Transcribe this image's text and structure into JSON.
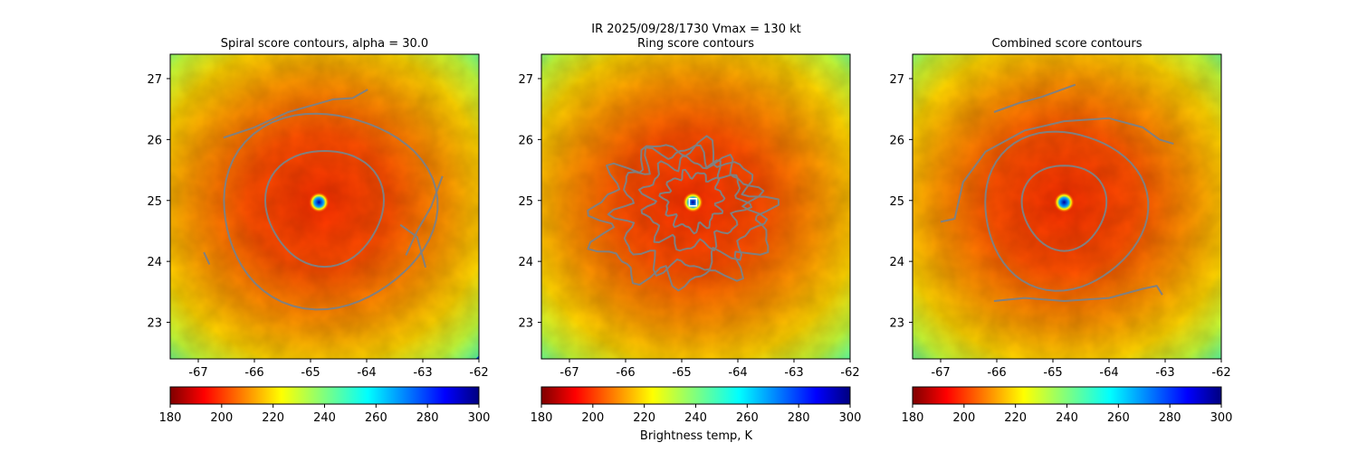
{
  "figure": {
    "suptitle": "IR  2025/09/28/1730    Vmax = 130 kt",
    "colorbar_label": "Brightness temp, K"
  },
  "chart_data": [
    {
      "type": "heatmap",
      "title": "Spiral score contours, alpha = 30.0",
      "xlim": [
        -67.5,
        -62.0
      ],
      "ylim": [
        22.4,
        27.4
      ],
      "xticks": [
        "-67",
        "-66",
        "-65",
        "-64",
        "-63",
        "-62"
      ],
      "xtick_values": [
        -67,
        -66,
        -65,
        -64,
        -63,
        -62
      ],
      "yticks": [
        "23",
        "24",
        "25",
        "26",
        "27"
      ],
      "ytick_values": [
        23,
        24,
        25,
        26,
        27
      ],
      "center": [
        -64.85,
        24.97
      ],
      "contours": [
        {
          "type": "ring",
          "rx": 1.05,
          "ry": 0.95,
          "cx": -64.75,
          "cy": 24.9
        },
        {
          "type": "ring",
          "rx": 1.9,
          "ry": 1.6,
          "cx": -64.7,
          "cy": 24.85
        },
        {
          "type": "path",
          "points": [
            [
              -66.55,
              26.03
            ],
            [
              -66.0,
              26.2
            ],
            [
              -65.4,
              26.45
            ],
            [
              -64.9,
              26.58
            ],
            [
              -64.6,
              26.66
            ],
            [
              -64.25,
              26.68
            ],
            [
              -63.98,
              26.82
            ]
          ]
        },
        {
          "type": "path",
          "points": [
            [
              -63.3,
              24.1
            ],
            [
              -63.1,
              24.5
            ],
            [
              -62.85,
              24.9
            ],
            [
              -62.65,
              25.4
            ]
          ]
        },
        {
          "type": "path",
          "points": [
            [
              -63.4,
              24.6
            ],
            [
              -63.1,
              24.4
            ],
            [
              -62.95,
              23.9
            ]
          ]
        },
        {
          "type": "path",
          "points": [
            [
              -66.9,
              24.15
            ],
            [
              -66.8,
              23.95
            ]
          ]
        }
      ],
      "colorbar": {
        "vmin": 180,
        "vmax": 300,
        "ticks": [
          "180",
          "200",
          "220",
          "240",
          "260",
          "280",
          "300"
        ],
        "tick_values": [
          180,
          200,
          220,
          240,
          260,
          280,
          300
        ]
      }
    },
    {
      "type": "heatmap",
      "title": "Ring score contours",
      "xlim": [
        -67.5,
        -62.0
      ],
      "ylim": [
        22.4,
        27.4
      ],
      "xticks": [
        "-67",
        "-66",
        "-65",
        "-64",
        "-63",
        "-62"
      ],
      "xtick_values": [
        -67,
        -66,
        -65,
        -64,
        -63,
        -62
      ],
      "yticks": [
        "23",
        "24",
        "25",
        "26",
        "27"
      ],
      "ytick_values": [
        23,
        24,
        25,
        26,
        27
      ],
      "center": [
        -64.8,
        24.97
      ],
      "marker": "square",
      "contours": [
        {
          "type": "jagged",
          "rx": 0.5,
          "ry": 0.45,
          "cx": -64.8,
          "cy": 25.0
        },
        {
          "type": "jagged",
          "rx": 0.85,
          "ry": 0.7,
          "cx": -64.8,
          "cy": 24.95
        },
        {
          "type": "jagged",
          "rx": 1.2,
          "ry": 0.95,
          "cx": -64.9,
          "cy": 24.85
        },
        {
          "type": "jagged",
          "rx": 1.5,
          "ry": 1.1,
          "cx": -65.0,
          "cy": 24.75
        }
      ],
      "colorbar": {
        "vmin": 180,
        "vmax": 300,
        "ticks": [
          "180",
          "200",
          "220",
          "240",
          "260",
          "280",
          "300"
        ],
        "tick_values": [
          180,
          200,
          220,
          240,
          260,
          280,
          300
        ]
      }
    },
    {
      "type": "heatmap",
      "title": "Combined score contours",
      "xlim": [
        -67.5,
        -62.0
      ],
      "ylim": [
        22.4,
        27.4
      ],
      "xticks": [
        "-67",
        "-66",
        "-65",
        "-64",
        "-63",
        "-62"
      ],
      "xtick_values": [
        -67,
        -66,
        -65,
        -64,
        -63,
        -62
      ],
      "yticks": [
        "23",
        "24",
        "25",
        "26",
        "27"
      ],
      "ytick_values": [
        23,
        24,
        25,
        26,
        27
      ],
      "center": [
        -64.8,
        24.97
      ],
      "contours": [
        {
          "type": "ring",
          "rx": 0.75,
          "ry": 0.7,
          "cx": -64.8,
          "cy": 24.9
        },
        {
          "type": "ring",
          "rx": 1.45,
          "ry": 1.3,
          "cx": -64.8,
          "cy": 24.85
        },
        {
          "type": "path",
          "points": [
            [
              -67.0,
              24.65
            ],
            [
              -66.75,
              24.7
            ],
            [
              -66.6,
              25.3
            ],
            [
              -66.2,
              25.8
            ],
            [
              -65.5,
              26.15
            ],
            [
              -64.8,
              26.3
            ],
            [
              -64.0,
              26.35
            ],
            [
              -63.4,
              26.2
            ],
            [
              -63.1,
              26.0
            ],
            [
              -62.85,
              25.93
            ]
          ]
        },
        {
          "type": "path",
          "points": [
            [
              -66.05,
              23.35
            ],
            [
              -65.5,
              23.4
            ],
            [
              -64.8,
              23.35
            ],
            [
              -64.0,
              23.4
            ],
            [
              -63.4,
              23.55
            ],
            [
              -63.15,
              23.6
            ],
            [
              -63.05,
              23.45
            ]
          ]
        },
        {
          "type": "path",
          "points": [
            [
              -66.05,
              26.45
            ],
            [
              -65.6,
              26.6
            ],
            [
              -65.2,
              26.7
            ],
            [
              -64.9,
              26.8
            ],
            [
              -64.6,
              26.9
            ]
          ]
        }
      ],
      "colorbar": {
        "vmin": 180,
        "vmax": 300,
        "ticks": [
          "180",
          "200",
          "220",
          "240",
          "260",
          "280",
          "300"
        ],
        "tick_values": [
          180,
          200,
          220,
          240,
          260,
          280,
          300
        ]
      }
    }
  ],
  "colors": {
    "contour": "#808080",
    "jet_stops": [
      "#7f0000",
      "#ff0000",
      "#ff7f00",
      "#ffff00",
      "#7fff7f",
      "#00ffff",
      "#007fff",
      "#0000ff",
      "#00007f"
    ],
    "marker": "#ffffff"
  }
}
